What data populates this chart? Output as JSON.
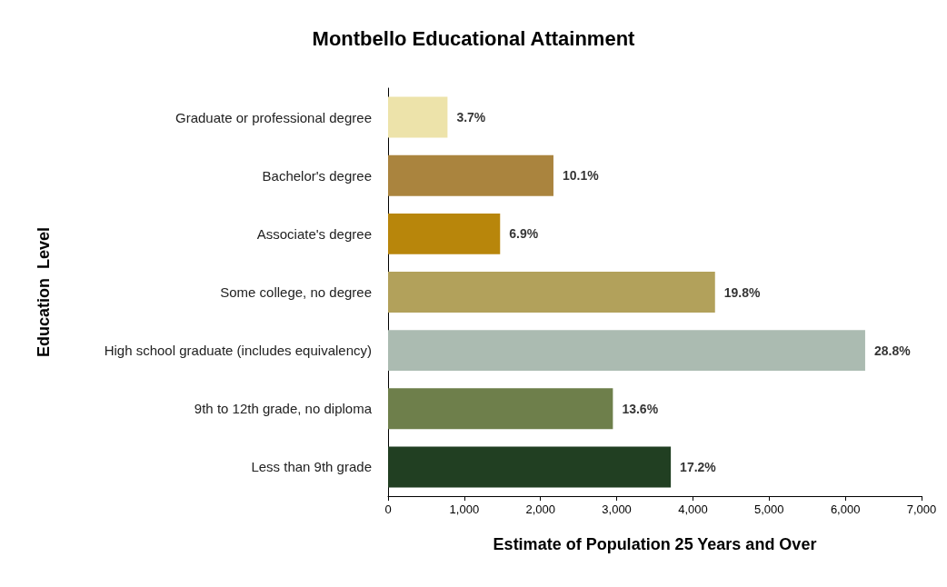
{
  "chart_data": {
    "type": "bar",
    "orientation": "horizontal",
    "title": "Montbello Educational Attainment",
    "xlabel": "Estimate of Population 25 Years and Over",
    "ylabel": "Education  Level",
    "categories": [
      "Graduate or professional degree",
      "Bachelor's degree",
      "Associate's degree",
      "Some college, no degree",
      "High school graduate (includes equivalency)",
      "9th to 12th grade, no diploma",
      "Less than 9th grade"
    ],
    "values": [
      780,
      2170,
      1470,
      4290,
      6260,
      2950,
      3710
    ],
    "colors": [
      "#ede3aa",
      "#aa843e",
      "#b8860b",
      "#b2a15b",
      "#abbbb1",
      "#6e7f4b",
      "#213f22"
    ],
    "annotations": [
      {
        "text": "3.7%",
        "x": 780,
        "y": "Graduate or professional degree"
      },
      {
        "text": "10.1%",
        "x": 2170,
        "y": "Bachelor's degree"
      },
      {
        "text": "6.9%",
        "x": 1470,
        "y": "Associate's degree"
      },
      {
        "text": "19.8%",
        "x": 4290,
        "y": "Some college, no degree"
      },
      {
        "text": "28.8%",
        "x": 6260,
        "y": "High school graduate (includes equivalency)"
      },
      {
        "text": "13.6%",
        "x": 2950,
        "y": "9th to 12th grade, no diploma"
      },
      {
        "text": "17.2%",
        "x": 3710,
        "y": "Less than 9th grade"
      }
    ],
    "xlim": [
      0,
      7000
    ],
    "xticks": [
      {
        "value": 0,
        "label": "0"
      },
      {
        "value": 1000,
        "label": "1,000"
      },
      {
        "value": 2000,
        "label": "2,000"
      },
      {
        "value": 3000,
        "label": "3,000"
      },
      {
        "value": 4000,
        "label": "4,000"
      },
      {
        "value": 5000,
        "label": "5,000"
      },
      {
        "value": 6000,
        "label": "6,000"
      },
      {
        "value": 7000,
        "label": "7,000"
      }
    ],
    "grid": false
  }
}
